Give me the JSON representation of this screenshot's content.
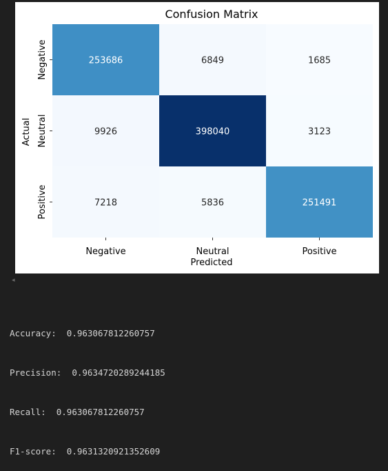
{
  "chart_data": {
    "type": "heatmap",
    "title": "Confusion Matrix",
    "xlabel": "Predicted",
    "ylabel": "Actual",
    "x_categories": [
      "Negative",
      "Neutral",
      "Positive"
    ],
    "y_categories": [
      "Negative",
      "Neutral",
      "Positive"
    ],
    "values": [
      [
        253686,
        6849,
        1685
      ],
      [
        9926,
        398040,
        3123
      ],
      [
        7218,
        5836,
        251491
      ]
    ],
    "colormap": "Blues",
    "colorbar": false,
    "grid": false
  },
  "output": {
    "scroll_arrow": "◂",
    "metrics": [
      {
        "label": "Accuracy:",
        "value": "0.963067812260757"
      },
      {
        "label": "Precision:",
        "value": "0.9634720289244185"
      },
      {
        "label": "Recall:",
        "value": "0.963067812260757"
      },
      {
        "label": "F1-score:",
        "value": "0.9631320921352609"
      }
    ]
  }
}
